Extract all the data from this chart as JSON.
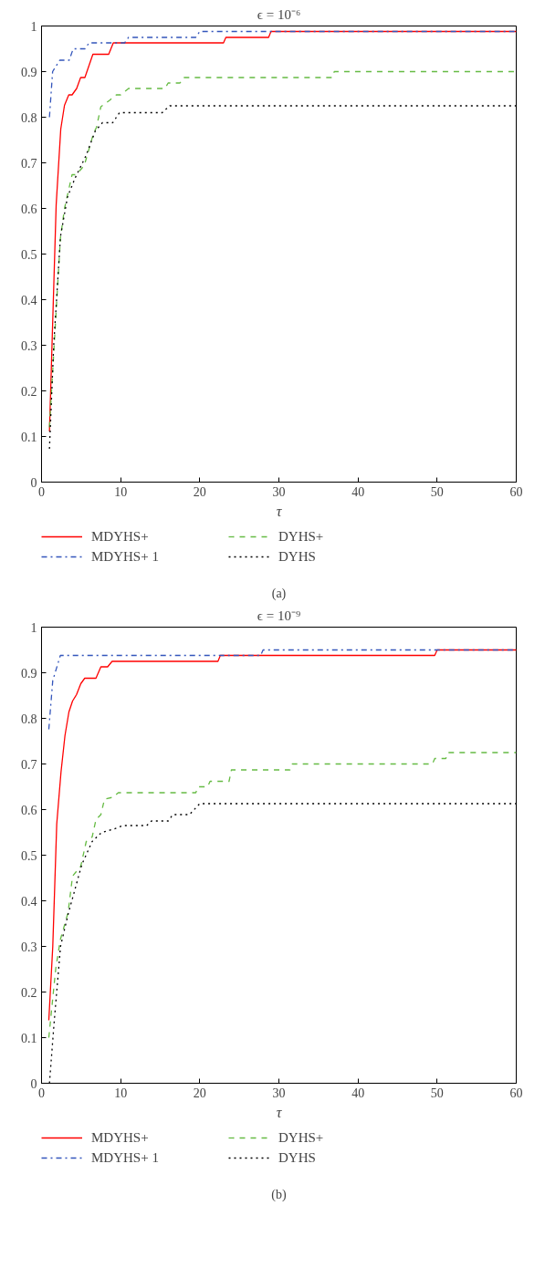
{
  "chart_data": [
    {
      "type": "line",
      "title": "ϵ = 10⁻⁶",
      "xlabel": "τ",
      "xlim": [
        0,
        60
      ],
      "ylim": [
        0,
        1
      ],
      "xticks": [
        0,
        10,
        20,
        30,
        40,
        50,
        60
      ],
      "yticks": [
        0,
        0.1,
        0.2,
        0.3,
        0.4,
        0.5,
        0.6,
        0.7,
        0.8,
        0.9,
        1
      ],
      "grid": false,
      "legend": "bottom",
      "annotations": [
        "(a)"
      ],
      "series": [
        {
          "name": "MDYHS+",
          "color": "#ff0000",
          "line_style": "solid",
          "x": [
            1,
            1.85,
            2.43,
            2.9,
            3.44,
            3.86,
            4.44,
            4.94,
            5.48,
            6.49,
            8.49,
            9.07,
            23,
            23.3,
            28.7,
            29,
            60
          ],
          "values": [
            0.111,
            0.608,
            0.774,
            0.826,
            0.849,
            0.849,
            0.863,
            0.887,
            0.887,
            0.938,
            0.938,
            0.963,
            0.963,
            0.975,
            0.975,
            0.988,
            0.988
          ]
        },
        {
          "name": "MDYHS+ 1",
          "color": "#3355bb",
          "line_style": "dashdot",
          "x": [
            1,
            1.4,
            2.3,
            3.5,
            4,
            5.5,
            6,
            10.5,
            11,
            19.5,
            20,
            60
          ],
          "values": [
            0.8,
            0.9,
            0.925,
            0.925,
            0.95,
            0.95,
            0.963,
            0.963,
            0.975,
            0.975,
            0.988,
            0.988
          ]
        },
        {
          "name": "DYHS+",
          "color": "#66bb44",
          "line_style": "dashed",
          "x": [
            1,
            1.93,
            2.39,
            2.9,
            3.86,
            4.36,
            5.4,
            6.56,
            6.95,
            7.5,
            8.6,
            9.46,
            10,
            11,
            15.6,
            16,
            17.5,
            17.95,
            36.7,
            37,
            60
          ],
          "values": [
            0.12,
            0.4,
            0.535,
            0.6,
            0.674,
            0.674,
            0.694,
            0.764,
            0.778,
            0.823,
            0.837,
            0.849,
            0.849,
            0.863,
            0.863,
            0.875,
            0.875,
            0.887,
            0.887,
            0.9,
            0.9
          ]
        },
        {
          "name": "DYHS",
          "color": "#000000",
          "line_style": "dotted",
          "x": [
            1,
            1.54,
            2.39,
            3.28,
            4.25,
            5.6,
            6.8,
            7.7,
            9,
            9.85,
            15.25,
            16.2,
            60
          ],
          "values": [
            0.073,
            0.3,
            0.538,
            0.625,
            0.667,
            0.715,
            0.77,
            0.788,
            0.788,
            0.81,
            0.81,
            0.825,
            0.825
          ]
        }
      ]
    },
    {
      "type": "line",
      "title": "ϵ = 10⁻⁹",
      "xlabel": "τ",
      "xlim": [
        0,
        60
      ],
      "ylim": [
        0,
        1
      ],
      "xticks": [
        0,
        10,
        20,
        30,
        40,
        50,
        60
      ],
      "yticks": [
        0,
        0.1,
        0.2,
        0.3,
        0.4,
        0.5,
        0.6,
        0.7,
        0.8,
        0.9,
        1
      ],
      "grid": false,
      "legend": "bottom",
      "annotations": [
        "(b)"
      ],
      "series": [
        {
          "name": "MDYHS+",
          "color": "#ff0000",
          "line_style": "solid",
          "x": [
            0.92,
            1.42,
            1.92,
            2.46,
            2.96,
            3.46,
            3.92,
            4.42,
            4.96,
            5.46,
            6.88,
            7.5,
            8.35,
            8.92,
            22.3,
            22.6,
            49.7,
            50,
            60
          ],
          "values": [
            0.138,
            0.3,
            0.568,
            0.682,
            0.762,
            0.814,
            0.838,
            0.852,
            0.876,
            0.888,
            0.888,
            0.913,
            0.913,
            0.925,
            0.925,
            0.938,
            0.938,
            0.95,
            0.95
          ]
        },
        {
          "name": "MDYHS+ 1",
          "color": "#3355bb",
          "line_style": "dashdot",
          "x": [
            0.92,
            1.42,
            2.38,
            27.7,
            28,
            60
          ],
          "values": [
            0.776,
            0.883,
            0.938,
            0.938,
            0.95,
            0.95
          ]
        },
        {
          "name": "DYHS+",
          "color": "#66bb44",
          "line_style": "dashed",
          "x": [
            0.92,
            1.8,
            2.38,
            3.35,
            3.92,
            4.96,
            5.65,
            6.4,
            6.88,
            7.5,
            7.96,
            9,
            9.7,
            19.5,
            19.8,
            21,
            21.3,
            23.7,
            24,
            31.4,
            31.7,
            49.4,
            49.7,
            51.1,
            51.4,
            60
          ],
          "values": [
            0.1,
            0.252,
            0.315,
            0.374,
            0.454,
            0.476,
            0.53,
            0.54,
            0.578,
            0.589,
            0.623,
            0.627,
            0.637,
            0.637,
            0.65,
            0.65,
            0.662,
            0.662,
            0.687,
            0.687,
            0.7,
            0.7,
            0.712,
            0.712,
            0.725,
            0.725
          ]
        },
        {
          "name": "DYHS",
          "color": "#000000",
          "line_style": "dotted",
          "x": [
            1,
            1.6,
            2.4,
            3.35,
            5.1,
            6.4,
            7.6,
            9.1,
            10.3,
            13.3,
            13.9,
            16,
            16.6,
            18.7,
            20,
            60
          ],
          "values": [
            0.0,
            0.135,
            0.3,
            0.37,
            0.48,
            0.53,
            0.55,
            0.557,
            0.565,
            0.565,
            0.575,
            0.575,
            0.589,
            0.589,
            0.613,
            0.613
          ]
        }
      ]
    }
  ]
}
